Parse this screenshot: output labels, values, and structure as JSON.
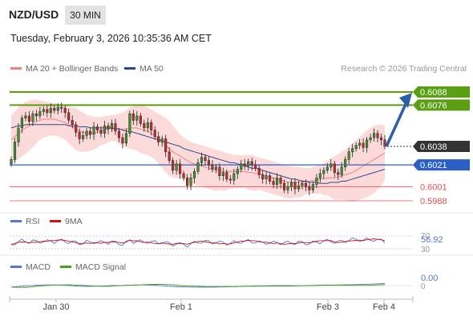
{
  "header": {
    "symbol": "NZD/USD",
    "timeframe": "30 MIN",
    "datetime": "Tuesday, February 3, 2026 10:35:36 AM CET"
  },
  "legend": {
    "ma20_label": "MA 20 + Bollinger Bands",
    "ma50_label": "MA 50",
    "credit": "Research © 2026 Trading Central"
  },
  "rsi_panel": {
    "legend_rsi": "RSI",
    "legend_ma": "9MA",
    "value": "56.92",
    "level_70": "70",
    "level_30": "30"
  },
  "macd_panel": {
    "legend_macd": "MACD",
    "legend_signal": "MACD Signal",
    "value": "0.00",
    "zero": "0"
  },
  "colors": {
    "ma20": "#f08080",
    "bollinger": "#fbd3d3",
    "ma50": "#2b4a8a",
    "resistance": "#5a9e12",
    "pivot": "#2a5fc8",
    "support": "#e05050",
    "arrow": "#2c5fa8",
    "rsi": "#5577cc",
    "rsi_ma": "#cc1111",
    "macd": "#5577cc",
    "macd_signal": "#4a9e1a"
  },
  "chart_data": {
    "type": "candlestick",
    "x_ticks": [
      "Jan 30",
      "Feb 1",
      "Feb 3",
      "Feb 4"
    ],
    "ylim": [
      0.5975,
      0.6105
    ],
    "levels": [
      {
        "value": 0.6088,
        "label": "0.6088",
        "kind": "resistance"
      },
      {
        "value": 0.6076,
        "label": "0.6076",
        "kind": "resistance"
      },
      {
        "value": 0.6038,
        "label": "0.6038",
        "kind": "last"
      },
      {
        "value": 0.6021,
        "label": "0.6021",
        "kind": "pivot"
      },
      {
        "value": 0.6001,
        "label": "0.6001",
        "kind": "support"
      },
      {
        "value": 0.5988,
        "label": "0.5988",
        "kind": "support"
      }
    ],
    "close": [
      0.6026,
      0.6042,
      0.6055,
      0.6064,
      0.6066,
      0.6061,
      0.6068,
      0.6066,
      0.607,
      0.6072,
      0.6069,
      0.6073,
      0.6071,
      0.6074,
      0.6073,
      0.6069,
      0.6062,
      0.6058,
      0.6051,
      0.6045,
      0.6048,
      0.6052,
      0.6049,
      0.6056,
      0.6053,
      0.605,
      0.6057,
      0.6054,
      0.6059,
      0.6052,
      0.6046,
      0.6041,
      0.605,
      0.6068,
      0.6062,
      0.6066,
      0.6059,
      0.6055,
      0.606,
      0.6053,
      0.6047,
      0.6042,
      0.6045,
      0.6033,
      0.6025,
      0.6016,
      0.6022,
      0.6013,
      0.6009,
      0.6002,
      0.6009,
      0.6015,
      0.6023,
      0.6028,
      0.6025,
      0.6021,
      0.6017,
      0.6019,
      0.6011,
      0.6014,
      0.6008,
      0.6007,
      0.6013,
      0.6017,
      0.6022,
      0.602,
      0.6024,
      0.6021,
      0.6018,
      0.6012,
      0.6008,
      0.6011,
      0.6006,
      0.6003,
      0.6009,
      0.6004,
      0.5998,
      0.6001,
      0.6005,
      0.5999,
      0.6002,
      0.6004,
      0.6001,
      0.5998,
      0.6003,
      0.6009,
      0.6013,
      0.6016,
      0.6019,
      0.6022,
      0.6014,
      0.6012,
      0.6019,
      0.6026,
      0.6033,
      0.6036,
      0.6039,
      0.6041,
      0.6037,
      0.6044,
      0.6046,
      0.605,
      0.6046,
      0.6044,
      0.6038
    ],
    "ma20": [
      0.6044,
      0.6047,
      0.605,
      0.6053,
      0.6055,
      0.6057,
      0.6059,
      0.6061,
      0.6062,
      0.6063,
      0.6063,
      0.6063,
      0.6063,
      0.6062,
      0.6061,
      0.606,
      0.6058,
      0.6056,
      0.6054,
      0.6052,
      0.6051,
      0.605,
      0.605,
      0.605,
      0.6051,
      0.6052,
      0.6053,
      0.6054,
      0.6055,
      0.6055,
      0.6054,
      0.6054,
      0.6054,
      0.6055,
      0.6055,
      0.6055,
      0.6054,
      0.6053,
      0.6052,
      0.605,
      0.6048,
      0.6045,
      0.6042,
      0.6039,
      0.6036,
      0.6033,
      0.6031,
      0.6029,
      0.6027,
      0.6025,
      0.6023,
      0.6022,
      0.6021,
      0.602,
      0.6019,
      0.6018,
      0.6017,
      0.6016,
      0.6016,
      0.6015,
      0.6015,
      0.6015,
      0.6015,
      0.6015,
      0.6015,
      0.6015,
      0.6014,
      0.6014,
      0.6013,
      0.6013,
      0.6012,
      0.6011,
      0.601,
      0.6009,
      0.6008,
      0.6007,
      0.6006,
      0.6005,
      0.6005,
      0.6005,
      0.6005,
      0.6005,
      0.6006,
      0.6006,
      0.6007,
      0.6007,
      0.6008,
      0.6008,
      0.6009,
      0.6009,
      0.6009,
      0.601,
      0.6011,
      0.6012,
      0.6013,
      0.6014,
      0.6016,
      0.6018,
      0.602,
      0.6022,
      0.6024,
      0.6026,
      0.6028,
      0.603,
      0.6032
    ],
    "bb_upper": [
      0.6066,
      0.607,
      0.6074,
      0.6077,
      0.6079,
      0.608,
      0.6081,
      0.6081,
      0.608,
      0.608,
      0.6079,
      0.6078,
      0.6078,
      0.6077,
      0.6076,
      0.6076,
      0.6075,
      0.6074,
      0.6073,
      0.6071,
      0.6069,
      0.6067,
      0.6066,
      0.6065,
      0.6065,
      0.6065,
      0.6066,
      0.6066,
      0.6067,
      0.6067,
      0.6068,
      0.6069,
      0.6071,
      0.6074,
      0.6075,
      0.6076,
      0.6076,
      0.6075,
      0.6074,
      0.6072,
      0.607,
      0.6068,
      0.6066,
      0.6064,
      0.6061,
      0.6057,
      0.6053,
      0.6049,
      0.6046,
      0.6044,
      0.6042,
      0.6041,
      0.604,
      0.6039,
      0.6038,
      0.6037,
      0.6036,
      0.6035,
      0.6034,
      0.6033,
      0.6032,
      0.6031,
      0.603,
      0.603,
      0.603,
      0.603,
      0.603,
      0.603,
      0.6029,
      0.6028,
      0.6027,
      0.6026,
      0.6025,
      0.6024,
      0.6023,
      0.6022,
      0.6021,
      0.602,
      0.602,
      0.6019,
      0.6019,
      0.6018,
      0.6018,
      0.6018,
      0.6019,
      0.602,
      0.6021,
      0.6023,
      0.6025,
      0.6027,
      0.6029,
      0.6031,
      0.6033,
      0.6035,
      0.6038,
      0.6041,
      0.6044,
      0.6047,
      0.605,
      0.6053,
      0.6055,
      0.6057,
      0.6058,
      0.6058,
      0.6057
    ],
    "bb_lower": [
      0.6022,
      0.6024,
      0.6026,
      0.6029,
      0.6031,
      0.6034,
      0.6037,
      0.6041,
      0.6044,
      0.6046,
      0.6047,
      0.6048,
      0.6048,
      0.6047,
      0.6046,
      0.6044,
      0.6041,
      0.6038,
      0.6035,
      0.6033,
      0.6033,
      0.6033,
      0.6034,
      0.6035,
      0.6037,
      0.6039,
      0.604,
      0.6042,
      0.6043,
      0.6043,
      0.604,
      0.6039,
      0.6037,
      0.6036,
      0.6035,
      0.6034,
      0.6032,
      0.6031,
      0.603,
      0.6028,
      0.6026,
      0.6022,
      0.6018,
      0.6014,
      0.6011,
      0.6009,
      0.6009,
      0.6009,
      0.6008,
      0.6006,
      0.6004,
      0.6003,
      0.6002,
      0.6001,
      0.6,
      0.5999,
      0.5998,
      0.5997,
      0.5998,
      0.5997,
      0.5998,
      0.5999,
      0.6,
      0.6,
      0.6,
      0.6,
      0.5998,
      0.5998,
      0.5997,
      0.5998,
      0.5997,
      0.5996,
      0.5995,
      0.5994,
      0.5993,
      0.5992,
      0.5991,
      0.599,
      0.599,
      0.5991,
      0.5991,
      0.5992,
      0.5994,
      0.5994,
      0.5995,
      0.5994,
      0.5995,
      0.5993,
      0.5993,
      0.5991,
      0.5989,
      0.5989,
      0.5989,
      0.5989,
      0.5988,
      0.5987,
      0.5988,
      0.5989,
      0.599,
      0.5991,
      0.5993,
      0.5995,
      0.5998,
      0.6002,
      0.6007
    ],
    "ma50": [
      0.6055,
      0.6056,
      0.6057,
      0.6057,
      0.6058,
      0.6058,
      0.6058,
      0.6058,
      0.6058,
      0.6058,
      0.6058,
      0.6058,
      0.6058,
      0.6058,
      0.6058,
      0.6058,
      0.6057,
      0.6057,
      0.6057,
      0.6056,
      0.6056,
      0.6056,
      0.6055,
      0.6055,
      0.6055,
      0.6055,
      0.6055,
      0.6055,
      0.6055,
      0.6054,
      0.6054,
      0.6053,
      0.6052,
      0.6052,
      0.6051,
      0.605,
      0.6049,
      0.6048,
      0.6047,
      0.6046,
      0.6045,
      0.6044,
      0.6043,
      0.6042,
      0.6041,
      0.604,
      0.6039,
      0.6038,
      0.6036,
      0.6035,
      0.6034,
      0.6033,
      0.6032,
      0.6031,
      0.603,
      0.6029,
      0.6028,
      0.6027,
      0.6026,
      0.6025,
      0.6024,
      0.6023,
      0.6023,
      0.6022,
      0.6021,
      0.602,
      0.6019,
      0.6018,
      0.6018,
      0.6017,
      0.6016,
      0.6015,
      0.6014,
      0.6013,
      0.6012,
      0.6011,
      0.601,
      0.6009,
      0.6008,
      0.6008,
      0.6007,
      0.6006,
      0.6006,
      0.6005,
      0.6005,
      0.6005,
      0.6004,
      0.6004,
      0.6004,
      0.6005,
      0.6005,
      0.6005,
      0.6006,
      0.6006,
      0.6007,
      0.6008,
      0.6009,
      0.601,
      0.6011,
      0.6012,
      0.6013,
      0.6014,
      0.6015,
      0.6016,
      0.6017
    ],
    "projection": {
      "from": 0.6038,
      "to": 0.6088
    },
    "rsi": {
      "ylim": [
        30,
        70
      ],
      "last": 56.92
    },
    "macd": {
      "last": 0.0
    }
  }
}
